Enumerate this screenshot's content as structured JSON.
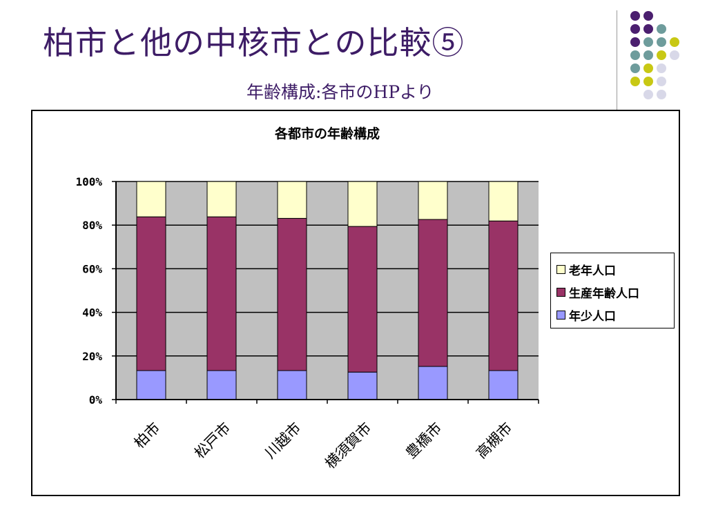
{
  "slide": {
    "title": "柏市と他の中核市との比較⑤",
    "subtitle": "年齢構成:各市のHPより"
  },
  "theme": {
    "title_color": "#3d1c66",
    "dot_colors": {
      "purple": "#4b1f6f",
      "teal": "#6e9c9c",
      "olive": "#c8c814",
      "lavender": "#d8d8e8"
    }
  },
  "chart_data": {
    "type": "bar",
    "stacked": "percent",
    "title": "各都市の年齢構成",
    "categories": [
      "柏市",
      "松戸市",
      "川越市",
      "横須賀市",
      "豊橋市",
      "高槻市"
    ],
    "series": [
      {
        "name": "年少人口",
        "color": "#9999ff",
        "values": [
          13.3,
          13.3,
          13.3,
          12.6,
          15.2,
          13.3
        ]
      },
      {
        "name": "生産年齢人口",
        "color": "#993366",
        "values": [
          70.5,
          70.5,
          69.8,
          66.8,
          67.4,
          68.6
        ]
      },
      {
        "name": "老年人口",
        "color": "#ffffcc",
        "values": [
          16.2,
          16.2,
          16.9,
          20.6,
          17.4,
          18.1
        ]
      }
    ],
    "legend_order": [
      "老年人口",
      "生産年齢人口",
      "年少人口"
    ],
    "ylim": [
      0,
      100
    ],
    "yticks": [
      "0%",
      "20%",
      "40%",
      "60%",
      "80%",
      "100%"
    ],
    "plot_background": "#c0c0c0",
    "grid": true,
    "legend_position": "right"
  }
}
